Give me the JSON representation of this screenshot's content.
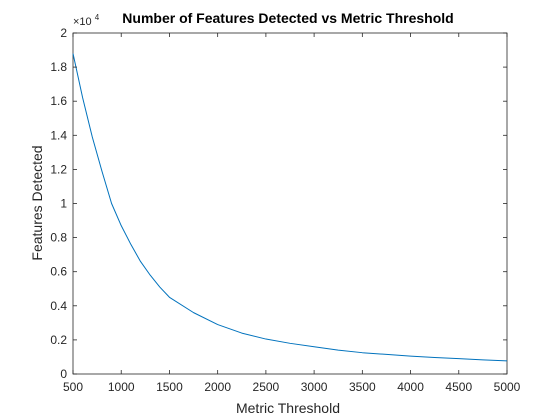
{
  "chart_data": {
    "type": "line",
    "title": "Number of Features Detected vs Metric Threshold",
    "xlabel": "Metric Threshold",
    "ylabel": "Features Detected",
    "xlim": [
      500,
      5000
    ],
    "ylim": [
      0,
      2
    ],
    "y_multiplier": {
      "prefix": "×10",
      "exponent": "4"
    },
    "x_ticks": [
      500,
      1000,
      1500,
      2000,
      2500,
      3000,
      3500,
      4000,
      4500,
      5000
    ],
    "y_ticks": [
      0,
      0.2,
      0.4,
      0.6,
      0.8,
      1,
      1.2,
      1.4,
      1.6,
      1.8,
      2
    ],
    "y_tick_labels": [
      "0",
      "0.2",
      "0.4",
      "0.6",
      "0.8",
      "1",
      "1.2",
      "1.4",
      "1.6",
      "1.8",
      "2"
    ],
    "grid": false,
    "line_color": "#0072BD",
    "series": [
      {
        "x": [
          500,
          600,
          700,
          800,
          900,
          1000,
          1100,
          1200,
          1300,
          1400,
          1500,
          1750,
          2000,
          2250,
          2500,
          2750,
          3000,
          3250,
          3500,
          3750,
          4000,
          4250,
          4500,
          4750,
          5000
        ],
        "values": [
          1.88,
          1.62,
          1.39,
          1.19,
          1.0,
          0.87,
          0.76,
          0.66,
          0.58,
          0.51,
          0.45,
          0.36,
          0.29,
          0.24,
          0.205,
          0.18,
          0.16,
          0.14,
          0.125,
          0.115,
          0.105,
          0.097,
          0.09,
          0.083,
          0.077
        ]
      }
    ]
  }
}
